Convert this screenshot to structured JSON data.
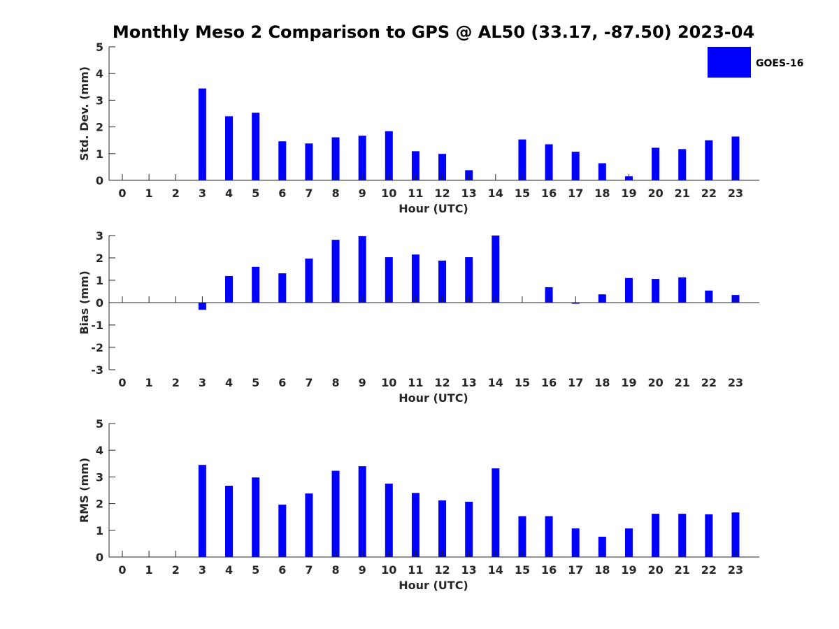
{
  "title": "Monthly Meso 2 Comparison to GPS @ AL50 (33.17, -87.50) 2023-04",
  "legend": {
    "label": "GOES-16",
    "color": "#0000ff",
    "placement": "top-right"
  },
  "chart_data": [
    {
      "type": "bar",
      "ylabel": "Std. Dev. (mm)",
      "xlabel": "Hour (UTC)",
      "ylim": [
        0,
        5
      ],
      "yticks": [
        0,
        1,
        2,
        3,
        4,
        5
      ],
      "categories": [
        "0",
        "1",
        "2",
        "3",
        "4",
        "5",
        "6",
        "7",
        "8",
        "9",
        "10",
        "11",
        "12",
        "13",
        "14",
        "15",
        "16",
        "17",
        "18",
        "19",
        "20",
        "21",
        "22",
        "23"
      ],
      "series": [
        {
          "name": "GOES-16",
          "values": [
            null,
            null,
            null,
            3.44,
            2.4,
            2.53,
            1.46,
            1.38,
            1.61,
            1.67,
            1.84,
            1.09,
            0.99,
            0.38,
            null,
            1.53,
            1.35,
            1.07,
            0.64,
            0.15,
            1.22,
            1.17,
            1.5,
            1.64
          ]
        }
      ]
    },
    {
      "type": "bar",
      "ylabel": "Bias (mm)",
      "xlabel": "Hour (UTC)",
      "ylim": [
        -3,
        3
      ],
      "yticks": [
        -3,
        -2,
        -1,
        0,
        1,
        2,
        3
      ],
      "categories": [
        "0",
        "1",
        "2",
        "3",
        "4",
        "5",
        "6",
        "7",
        "8",
        "9",
        "10",
        "11",
        "12",
        "13",
        "14",
        "15",
        "16",
        "17",
        "18",
        "19",
        "20",
        "21",
        "22",
        "23"
      ],
      "series": [
        {
          "name": "GOES-16",
          "values": [
            null,
            null,
            null,
            -0.32,
            1.19,
            1.6,
            1.31,
            1.97,
            2.81,
            2.97,
            2.03,
            2.15,
            1.88,
            2.03,
            3.0,
            null,
            0.69,
            -0.05,
            0.37,
            1.1,
            1.06,
            1.13,
            0.54,
            0.34
          ]
        }
      ]
    },
    {
      "type": "bar",
      "ylabel": "RMS (mm)",
      "xlabel": "Hour (UTC)",
      "ylim": [
        0,
        5
      ],
      "yticks": [
        0,
        1,
        2,
        3,
        4,
        5
      ],
      "categories": [
        "0",
        "1",
        "2",
        "3",
        "4",
        "5",
        "6",
        "7",
        "8",
        "9",
        "10",
        "11",
        "12",
        "13",
        "14",
        "15",
        "16",
        "17",
        "18",
        "19",
        "20",
        "21",
        "22",
        "23"
      ],
      "series": [
        {
          "name": "GOES-16",
          "values": [
            null,
            null,
            null,
            3.45,
            2.67,
            2.98,
            1.96,
            2.38,
            3.23,
            3.4,
            2.75,
            2.4,
            2.12,
            2.07,
            3.32,
            1.53,
            1.53,
            1.07,
            0.76,
            1.07,
            1.62,
            1.62,
            1.6,
            1.67
          ]
        }
      ]
    }
  ]
}
